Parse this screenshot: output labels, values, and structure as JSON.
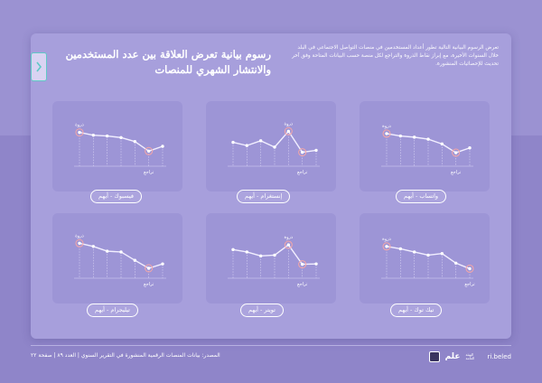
{
  "header": {
    "title": "رسوم بيانية تعرض العلاقة بين عدد المستخدمين والانتشار الشهري للمنصات",
    "description": "تعرض الرسوم البيانية التالية تطور أعداد المستخدمين في منصات التواصل الاجتماعي في البلد خلال السنوات الأخيرة، مع إبراز نقاط الذروة والتراجع لكل منصة حسب البيانات المتاحة وفق آخر تحديث للإحصائيات المنشورة."
  },
  "charts": [
    {
      "label": "فيسبوك - أيهم",
      "peak_label": "ذروة",
      "low_label": "تراجع"
    },
    {
      "label": "إنستغرام - أيهم",
      "peak_label": "ذروة",
      "low_label": "تراجع"
    },
    {
      "label": "واتساب - أيهم",
      "peak_label": "ذروة",
      "low_label": "تراجع"
    },
    {
      "label": "تيليجرام - أيهم",
      "peak_label": "ذروة",
      "low_label": "تراجع"
    },
    {
      "label": "تويتر - أيهم",
      "peak_label": "ذروة",
      "low_label": "تراجع"
    },
    {
      "label": "تيك توك - أيهم",
      "peak_label": "ذروة",
      "low_label": "تراجع"
    }
  ],
  "chart_data": [
    {
      "type": "line",
      "x": [
        1,
        2,
        3,
        4,
        5,
        6,
        7
      ],
      "values": [
        8.5,
        7.8,
        7.6,
        7.2,
        6.2,
        3.8,
        5.0
      ],
      "ylim": [
        0,
        10
      ]
    },
    {
      "type": "line",
      "x": [
        1,
        2,
        3,
        4,
        5,
        6,
        7
      ],
      "values": [
        6.0,
        5.2,
        6.4,
        4.8,
        8.8,
        3.5,
        4.0
      ],
      "ylim": [
        0,
        10
      ]
    },
    {
      "type": "line",
      "x": [
        1,
        2,
        3,
        4,
        5,
        6,
        7
      ],
      "values": [
        8.2,
        7.6,
        7.3,
        6.8,
        5.6,
        3.4,
        4.6
      ],
      "ylim": [
        0,
        10
      ]
    },
    {
      "type": "line",
      "x": [
        1,
        2,
        3,
        4,
        5,
        6,
        7
      ],
      "values": [
        8.8,
        8.0,
        6.8,
        6.6,
        4.5,
        2.5,
        3.6
      ],
      "ylim": [
        0,
        10
      ]
    },
    {
      "type": "line",
      "x": [
        1,
        2,
        3,
        4,
        5,
        6,
        7
      ],
      "values": [
        7.2,
        6.6,
        5.6,
        5.8,
        8.4,
        3.5,
        3.6
      ],
      "ylim": [
        0,
        10
      ]
    },
    {
      "type": "line",
      "x": [
        1,
        2,
        3,
        4,
        5,
        6,
        7
      ],
      "values": [
        8.0,
        7.4,
        6.6,
        5.8,
        6.2,
        3.8,
        2.4
      ],
      "ylim": [
        0,
        10
      ]
    }
  ],
  "footer": {
    "text": "المصدر: بيانات المنصات الرقمية المنشورة في التقرير السنوي | العدد ٨٩ | صفحة ٢٢",
    "brand": "علم",
    "brand_sub": "الهيئة العامة",
    "domain": "ri.beled"
  },
  "colors": {
    "line": "#f2efff",
    "peak": "#f6a6a6",
    "accent": "#5fc9c6"
  }
}
